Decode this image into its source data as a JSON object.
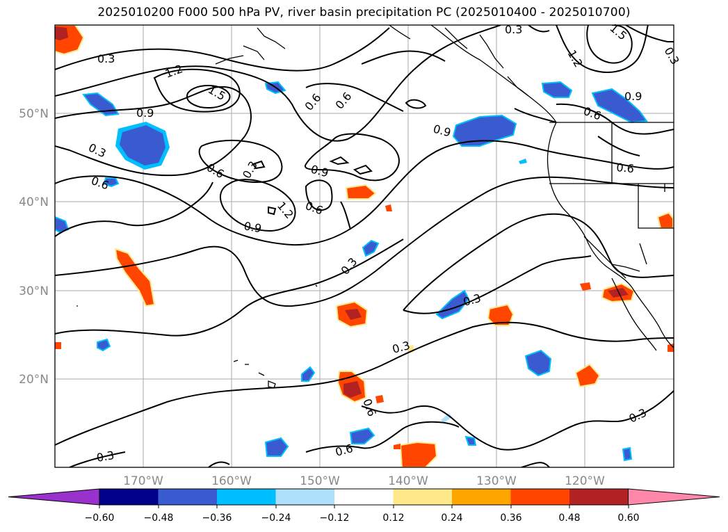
{
  "title": "2025010200 F000 500 hPa PV, river basin precipitation PC (2025010400 - 2025010700)",
  "lat_labels": [
    "50°N",
    "40°N",
    "30°N",
    "20°N"
  ],
  "lon_labels": [
    "170°W",
    "160°W",
    "150°W",
    "140°W",
    "130°W",
    "120°W"
  ],
  "map_extent": {
    "lon_min": -180,
    "lon_max": -110,
    "lat_min": 10,
    "lat_max": 60
  },
  "contour_labels": [
    "0.3",
    "1.2",
    "1.5",
    "0.9",
    "0.6",
    "0.3",
    "0.6",
    "0.9",
    "1.2",
    "0.6",
    "0.9",
    "0.3",
    "0.6",
    "0.9",
    "0.6",
    "0.3",
    "0.3",
    "0.3",
    "0.6",
    "0.3",
    "0.6",
    "0.3",
    "0.3",
    "1.2",
    "1.5",
    "0.9",
    "0.6",
    "0.6",
    "0.3"
  ],
  "colorbar": {
    "ticks": [
      "−0.60",
      "−0.48",
      "−0.36",
      "−0.24",
      "−0.12",
      "0.12",
      "0.24",
      "0.36",
      "0.48",
      "0.60"
    ],
    "colors": [
      "#9932cc",
      "#00008b",
      "#3a5bd0",
      "#00bfff",
      "#aee0fb",
      "#ffffff",
      "#ffe88a",
      "#ffa500",
      "#ff4500",
      "#b22222",
      "#ff88aa"
    ],
    "ends": "triangular extensions"
  },
  "palette": {
    "contour": "#000000",
    "coast": "#000000",
    "grid": "#aaaaaa",
    "axis_label": "#888888"
  }
}
